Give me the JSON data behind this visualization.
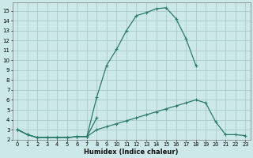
{
  "xlabel": "Humidex (Indice chaleur)",
  "bg_color": "#cce8e8",
  "grid_color": "#aacaca",
  "line_color": "#2a7a6a",
  "xlim": [
    -0.5,
    23.5
  ],
  "ylim": [
    2,
    15.8
  ],
  "xticks": [
    0,
    1,
    2,
    3,
    4,
    5,
    6,
    7,
    8,
    9,
    10,
    11,
    12,
    13,
    14,
    15,
    16,
    17,
    18,
    19,
    20,
    21,
    22,
    23
  ],
  "yticks": [
    2,
    3,
    4,
    5,
    6,
    7,
    8,
    9,
    10,
    11,
    12,
    13,
    14,
    15
  ],
  "curve1_x": [
    0,
    1,
    2,
    3,
    4,
    5,
    6,
    7,
    8,
    9,
    10,
    11,
    12,
    13,
    14,
    15,
    16,
    17,
    18
  ],
  "curve1_y": [
    3,
    2.5,
    2.2,
    2.2,
    2.2,
    2.2,
    2.3,
    2.3,
    6.3,
    9.5,
    11.1,
    13.0,
    14.5,
    14.8,
    15.2,
    15.3,
    14.2,
    12.2,
    9.5
  ],
  "curve2_x": [
    0,
    1,
    2,
    3,
    4,
    5,
    6,
    7,
    8,
    9,
    10,
    11,
    12,
    13,
    14,
    15,
    16,
    17,
    18,
    19,
    20,
    21,
    22,
    23
  ],
  "curve2_y": [
    3,
    2.5,
    2.2,
    2.2,
    2.2,
    2.2,
    2.3,
    2.3,
    3.0,
    3.3,
    3.6,
    3.9,
    4.2,
    4.5,
    4.8,
    5.1,
    5.4,
    5.7,
    6.0,
    5.7,
    3.8,
    2.5,
    2.5,
    2.4
  ],
  "curve3_x": [
    0,
    1,
    2,
    3,
    4,
    5,
    6,
    7,
    8,
    9,
    10,
    11,
    12,
    13,
    14,
    15,
    16,
    17,
    18,
    19,
    20,
    21,
    22,
    23
  ],
  "curve3_y": [
    3,
    2.5,
    2.2,
    2.2,
    2.2,
    2.2,
    2.3,
    2.3,
    4.2,
    null,
    null,
    null,
    null,
    null,
    null,
    null,
    null,
    null,
    null,
    null,
    null,
    null,
    null,
    null
  ]
}
